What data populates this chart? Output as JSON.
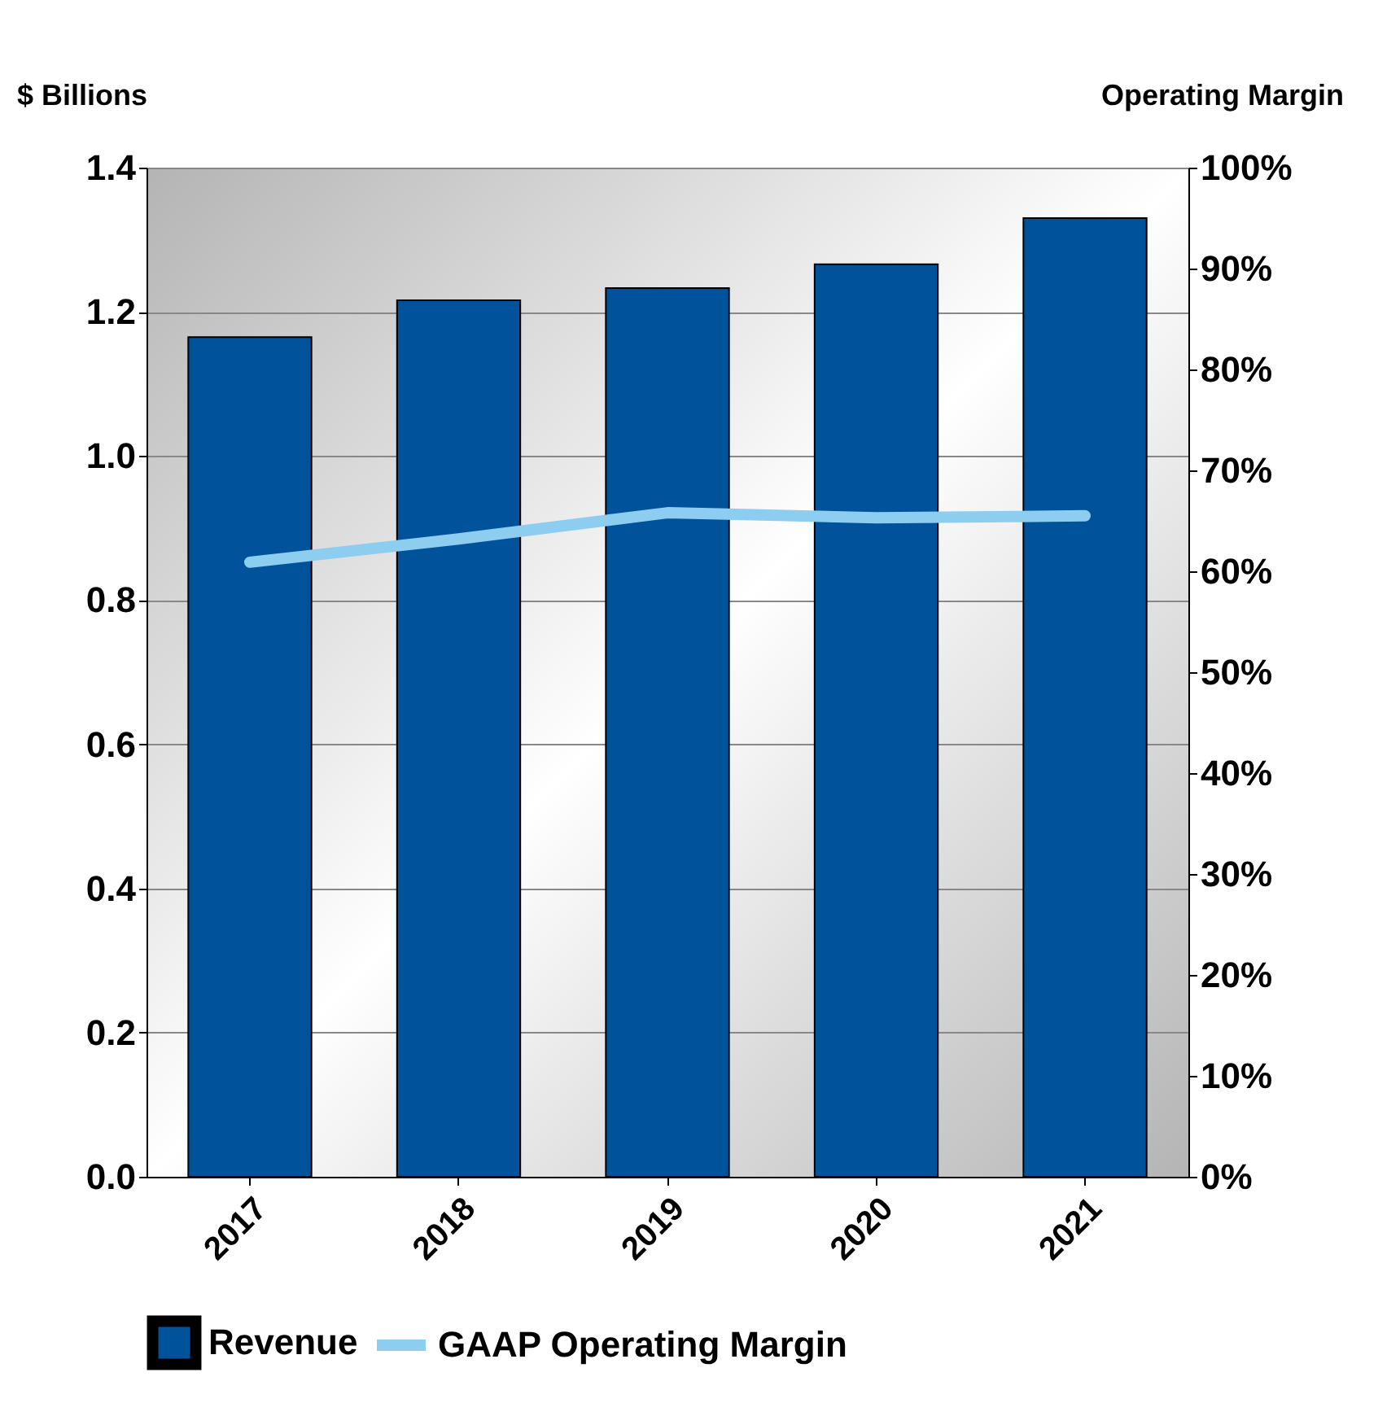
{
  "chart_data": {
    "type": "bar",
    "ylabel": "$ Billions",
    "y2label": "Operating Margin",
    "categories": [
      "2017",
      "2018",
      "2019",
      "2020",
      "2021"
    ],
    "series": [
      {
        "name": "Revenue",
        "color": "#00529b",
        "values": [
          1.165,
          1.216,
          1.233,
          1.266,
          1.33
        ]
      },
      {
        "name": "GAAP Operating Margin",
        "type": "line",
        "axis": "y2",
        "color": "#8dcdf0",
        "values": [
          60.9,
          63.2,
          65.8,
          65.3,
          65.5
        ]
      }
    ],
    "ylim": [
      0,
      1.4
    ],
    "yticks": [
      {
        "value": 0,
        "label": "0.0"
      },
      {
        "value": 0.2,
        "label": "0.2"
      },
      {
        "value": 0.4,
        "label": "0.4"
      },
      {
        "value": 0.6,
        "label": "0.6"
      },
      {
        "value": 0.8,
        "label": "0.8"
      },
      {
        "value": 1,
        "label": "1.0"
      },
      {
        "value": 1.2,
        "label": "1.2"
      },
      {
        "value": 1.4,
        "label": "1.4"
      }
    ],
    "y2lim": [
      0,
      100
    ],
    "y2ticks": [
      {
        "value": 0,
        "label": "0%"
      },
      {
        "value": 10,
        "label": "10%"
      },
      {
        "value": 20,
        "label": "20%"
      },
      {
        "value": 30,
        "label": "30%"
      },
      {
        "value": 40,
        "label": "40%"
      },
      {
        "value": 50,
        "label": "50%"
      },
      {
        "value": 60,
        "label": "60%"
      },
      {
        "value": 70,
        "label": "70%"
      },
      {
        "value": 80,
        "label": "80%"
      },
      {
        "value": 90,
        "label": "90%"
      },
      {
        "value": 100,
        "label": "100%"
      }
    ],
    "grid": "y",
    "legend": "bottom"
  }
}
